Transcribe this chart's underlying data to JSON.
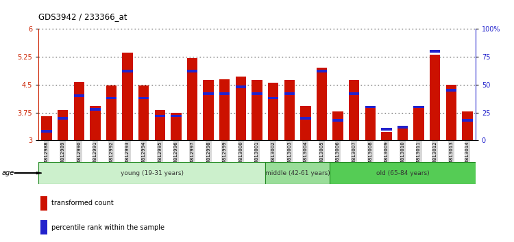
{
  "title": "GDS3942 / 233366_at",
  "samples": [
    "GSM812988",
    "GSM812989",
    "GSM812990",
    "GSM812991",
    "GSM812992",
    "GSM812993",
    "GSM812994",
    "GSM812995",
    "GSM812996",
    "GSM812997",
    "GSM812998",
    "GSM812999",
    "GSM813000",
    "GSM813001",
    "GSM813002",
    "GSM813003",
    "GSM813004",
    "GSM813005",
    "GSM813006",
    "GSM813007",
    "GSM813008",
    "GSM813009",
    "GSM813010",
    "GSM813011",
    "GSM813012",
    "GSM813013",
    "GSM813014"
  ],
  "transformed_count": [
    3.65,
    3.82,
    4.58,
    3.92,
    4.48,
    5.36,
    4.48,
    3.82,
    3.75,
    5.22,
    4.62,
    4.64,
    4.72,
    4.62,
    4.55,
    4.62,
    3.92,
    4.95,
    3.78,
    4.62,
    3.88,
    3.22,
    3.35,
    3.88,
    5.3,
    4.5,
    3.78
  ],
  "percentile_rank": [
    8,
    20,
    40,
    28,
    38,
    62,
    38,
    22,
    22,
    62,
    42,
    42,
    48,
    42,
    38,
    42,
    20,
    62,
    18,
    42,
    30,
    10,
    12,
    30,
    80,
    45,
    18
  ],
  "ylim_left": [
    3.0,
    6.0
  ],
  "ylim_right": [
    0,
    100
  ],
  "yticks_left": [
    3.0,
    3.75,
    4.5,
    5.25,
    6.0
  ],
  "yticks_right": [
    0,
    25,
    50,
    75,
    100
  ],
  "ytick_labels_left": [
    "3",
    "3.75",
    "4.5",
    "5.25",
    "6"
  ],
  "ytick_labels_right": [
    "0",
    "25",
    "50",
    "75",
    "100%"
  ],
  "groups": [
    {
      "label": "young (19-31 years)",
      "start": 0,
      "end": 14,
      "color": "#ccf0cc"
    },
    {
      "label": "middle (42-61 years)",
      "start": 14,
      "end": 18,
      "color": "#99dd99"
    },
    {
      "label": "old (65-84 years)",
      "start": 18,
      "end": 27,
      "color": "#55cc55"
    }
  ],
  "bar_color": "#cc1100",
  "blue_color": "#2222cc",
  "bar_width": 0.65,
  "tick_label_color_left": "#cc2200",
  "tick_label_color_right": "#2222cc",
  "legend_items": [
    {
      "label": "transformed count",
      "color": "#cc1100"
    },
    {
      "label": "percentile rank within the sample",
      "color": "#2222cc"
    }
  ],
  "group_border_color": "#228822",
  "plot_bg": "#ffffff"
}
